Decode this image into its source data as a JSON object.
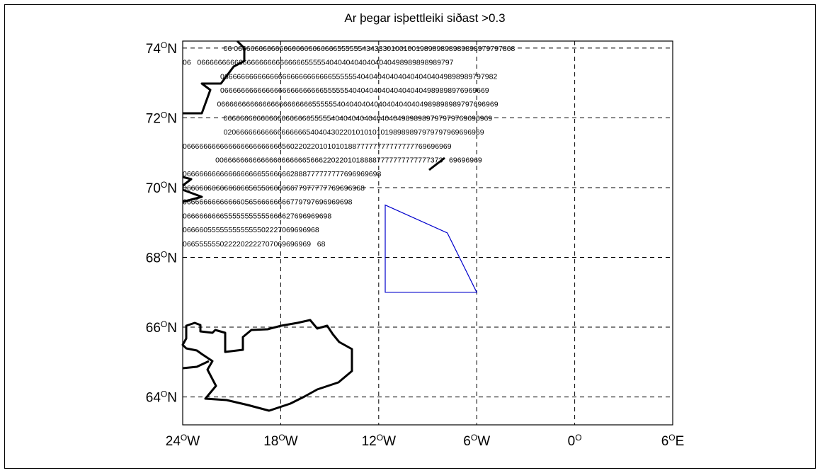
{
  "title": "Ar þegar isþettleiki siðast >0.3",
  "axes": {
    "lat_ticks": [
      {
        "deg": "74",
        "sup": "O",
        "hem": "N",
        "value": 74
      },
      {
        "deg": "72",
        "sup": "O",
        "hem": "N",
        "value": 72
      },
      {
        "deg": "70",
        "sup": "O",
        "hem": "N",
        "value": 70
      },
      {
        "deg": "68",
        "sup": "O",
        "hem": "N",
        "value": 68
      },
      {
        "deg": "66",
        "sup": "O",
        "hem": "N",
        "value": 66
      },
      {
        "deg": "64",
        "sup": "O",
        "hem": "N",
        "value": 64
      }
    ],
    "lon_ticks": [
      {
        "deg": "24",
        "sup": "O",
        "hem": "W",
        "value": -24
      },
      {
        "deg": "18",
        "sup": "O",
        "hem": "W",
        "value": -18
      },
      {
        "deg": "12",
        "sup": "O",
        "hem": "W",
        "value": -12
      },
      {
        "deg": "6",
        "sup": "O",
        "hem": "W",
        "value": -6
      },
      {
        "deg": "0",
        "sup": "O",
        "hem": "",
        "value": 0
      },
      {
        "deg": "6",
        "sup": "O",
        "hem": "E",
        "value": 6
      }
    ],
    "lon_range": [
      -24,
      6
    ],
    "lat_range": [
      63.2,
      74.2
    ],
    "grid": true
  },
  "grid_rows": [
    {
      "lat": 74.0,
      "lon_start": -21.5,
      "text": "06 06666666666666666666666665555554343330100100198989898989898979797868"
    },
    {
      "lat": 73.6,
      "lon_start": -24.0,
      "text": "06   06666666666666666666666666555554040404040404040498989898989797"
    },
    {
      "lat": 73.2,
      "lon_start": -21.7,
      "text": "0666666666666666666666666665555554040404040404040404049898989797982"
    },
    {
      "lat": 72.8,
      "lon_start": -21.7,
      "text": "06666666666666666666666665555554040404040404040404989898976969669"
    },
    {
      "lat": 72.4,
      "lon_start": -21.9,
      "text": "06666666666666666666666555555404040404040404040404989898989797696969"
    },
    {
      "lat": 72.0,
      "lon_start": -21.5,
      "text": "06666666666666666666655555404040404040404049898989797979769696969"
    },
    {
      "lat": 71.6,
      "lon_start": -21.5,
      "text": "020666666666666666665404043022010101010198989897979797969696969"
    },
    {
      "lat": 71.2,
      "lon_start": -24.0,
      "text": "06666666666666666666666656022022010101018877777777777777769696969"
    },
    {
      "lat": 70.8,
      "lon_start": -22.0,
      "text": "0066666666666666666666566622022010188887777777777777373   69696969"
    },
    {
      "lat": 70.4,
      "lon_start": -24.0,
      "text": "066666666666666666655666662888777777777696969698"
    },
    {
      "lat": 70.0,
      "lon_start": -24.0,
      "text": "06666666666666665655666666677977777769696968"
    },
    {
      "lat": 69.6,
      "lon_start": -24.0,
      "text": "06666666666666056566666666779797696969698"
    },
    {
      "lat": 69.2,
      "lon_start": -24.0,
      "text": "066666666655555555555666627696969698"
    },
    {
      "lat": 68.8,
      "lon_start": -24.0,
      "text": "066660555555555555502227069696968"
    },
    {
      "lat": 68.4,
      "lon_start": -24.0,
      "text": "0665555550222202222707069696969   68"
    }
  ],
  "polygon": [
    [
      -11.6,
      69.5
    ],
    [
      -7.8,
      68.7
    ],
    [
      -6.0,
      67.0
    ],
    [
      -11.6,
      67.0
    ]
  ],
  "colors": {
    "polygon": "#0000cc",
    "coast": "#000000",
    "grid": "#000000"
  }
}
